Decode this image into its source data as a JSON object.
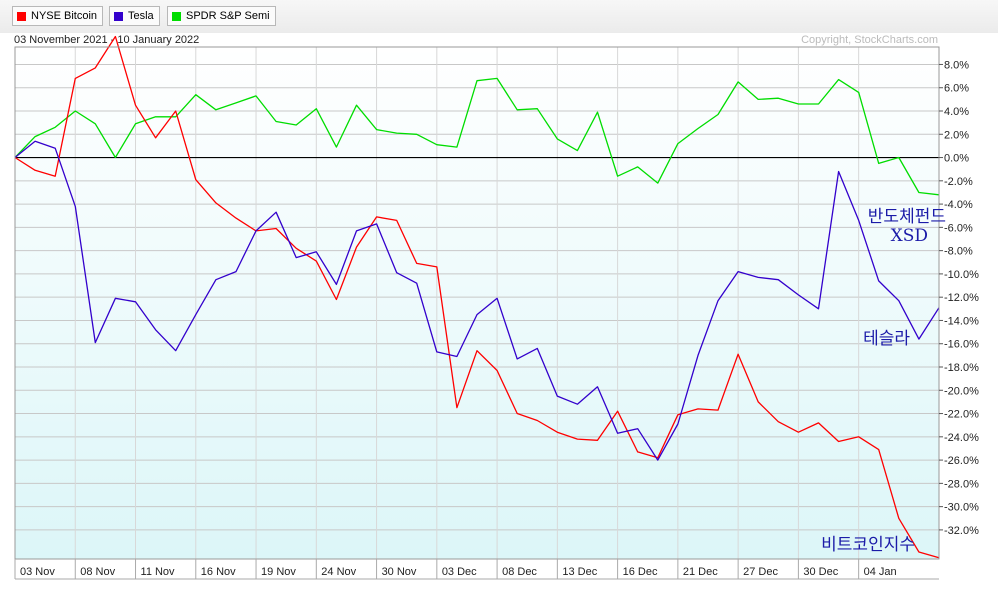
{
  "legend": [
    {
      "label": "NYSE Bitcoin",
      "color": "#ff0000"
    },
    {
      "label": "Tesla",
      "color": "#3300cc"
    },
    {
      "label": "SPDR S&P Semi",
      "color": "#00dd00"
    }
  ],
  "header": {
    "date_range": "03 November 2021 - 10 January 2022",
    "copyright": "Copyright, StockCharts.com"
  },
  "annotations": {
    "semi_line1": "반도체펀드",
    "semi_line2": "XSD",
    "tesla": "테슬라",
    "bitcoin": "비트코인지수"
  },
  "chart_data": {
    "type": "line",
    "title": "",
    "xlabel": "",
    "ylabel": "",
    "y_unit": "%",
    "ylim": [
      -34.5,
      9.5
    ],
    "y_ticks": [
      8,
      6,
      4,
      2,
      0,
      -2,
      -4,
      -6,
      -8,
      -10,
      -12,
      -14,
      -16,
      -18,
      -20,
      -22,
      -24,
      -26,
      -28,
      -30,
      -32
    ],
    "y_tick_labels": [
      "8.0%",
      "6.0%",
      "4.0%",
      "2.0%",
      "0.0%",
      "-2.0%",
      "-4.0%",
      "-6.0%",
      "-8.0%",
      "-10.0%",
      "-12.0%",
      "-14.0%",
      "-16.0%",
      "-18.0%",
      "-20.0%",
      "-22.0%",
      "-24.0%",
      "-26.0%",
      "-28.0%",
      "-30.0%",
      "-32.0%"
    ],
    "x_tick_labels": [
      "03 Nov",
      "08 Nov",
      "11 Nov",
      "16 Nov",
      "19 Nov",
      "24 Nov",
      "30 Nov",
      "03 Dec",
      "08 Dec",
      "13 Dec",
      "16 Dec",
      "21 Dec",
      "27 Dec",
      "30 Dec",
      "04 Jan"
    ],
    "x_tick_index": [
      0,
      3,
      6,
      9,
      12,
      15,
      18,
      21,
      24,
      27,
      30,
      33,
      36,
      39,
      42
    ],
    "grid": true,
    "legend_position": "top-left",
    "series": [
      {
        "name": "NYSE Bitcoin",
        "color": "#ff0000",
        "values": [
          0,
          -1.1,
          -1.6,
          6.8,
          7.7,
          10.4,
          4.5,
          1.7,
          4.0,
          -1.9,
          -3.9,
          -5.2,
          -6.3,
          -6.1,
          -7.8,
          -8.9,
          -12.2,
          -7.7,
          -5.1,
          -5.4,
          -9.1,
          -9.4,
          -21.5,
          -16.6,
          -18.3,
          -22.0,
          -22.6,
          -23.6,
          -24.2,
          -24.3,
          -21.8,
          -25.3,
          -25.8,
          -22.1,
          -21.6,
          -21.7,
          -16.9,
          -21.0,
          -22.7,
          -23.6,
          -22.8,
          -24.4,
          -24.0,
          -25.1,
          -31.0,
          -33.9,
          -34.4
        ]
      },
      {
        "name": "Tesla",
        "color": "#3300cc",
        "values": [
          0,
          1.4,
          0.8,
          -4.2,
          -15.9,
          -12.1,
          -12.4,
          -14.8,
          -16.6,
          -13.5,
          -10.5,
          -9.8,
          -6.3,
          -4.7,
          -8.6,
          -8.1,
          -10.9,
          -6.3,
          -5.7,
          -9.9,
          -10.8,
          -16.7,
          -17.1,
          -13.5,
          -12.1,
          -17.3,
          -16.4,
          -20.5,
          -21.2,
          -19.7,
          -23.7,
          -23.3,
          -26.0,
          -22.9,
          -17.0,
          -12.3,
          -9.8,
          -10.3,
          -10.5,
          -11.8,
          -13.0,
          -1.2,
          -5.4,
          -10.6,
          -12.3,
          -15.6,
          -12.9
        ]
      },
      {
        "name": "SPDR S&P Semi",
        "color": "#00dd00",
        "values": [
          0,
          1.8,
          2.6,
          4.0,
          2.9,
          0,
          2.9,
          3.5,
          3.5,
          5.4,
          4.1,
          4.7,
          5.3,
          3.1,
          2.8,
          4.2,
          0.9,
          4.5,
          2.4,
          2.1,
          2.0,
          1.1,
          0.9,
          6.6,
          6.8,
          4.1,
          4.2,
          1.6,
          0.6,
          3.9,
          -1.6,
          -0.8,
          -2.2,
          1.2,
          2.5,
          3.7,
          6.5,
          5.0,
          5.1,
          4.6,
          4.6,
          6.7,
          5.6,
          -0.5,
          0,
          -3.0,
          -3.2
        ]
      }
    ]
  }
}
